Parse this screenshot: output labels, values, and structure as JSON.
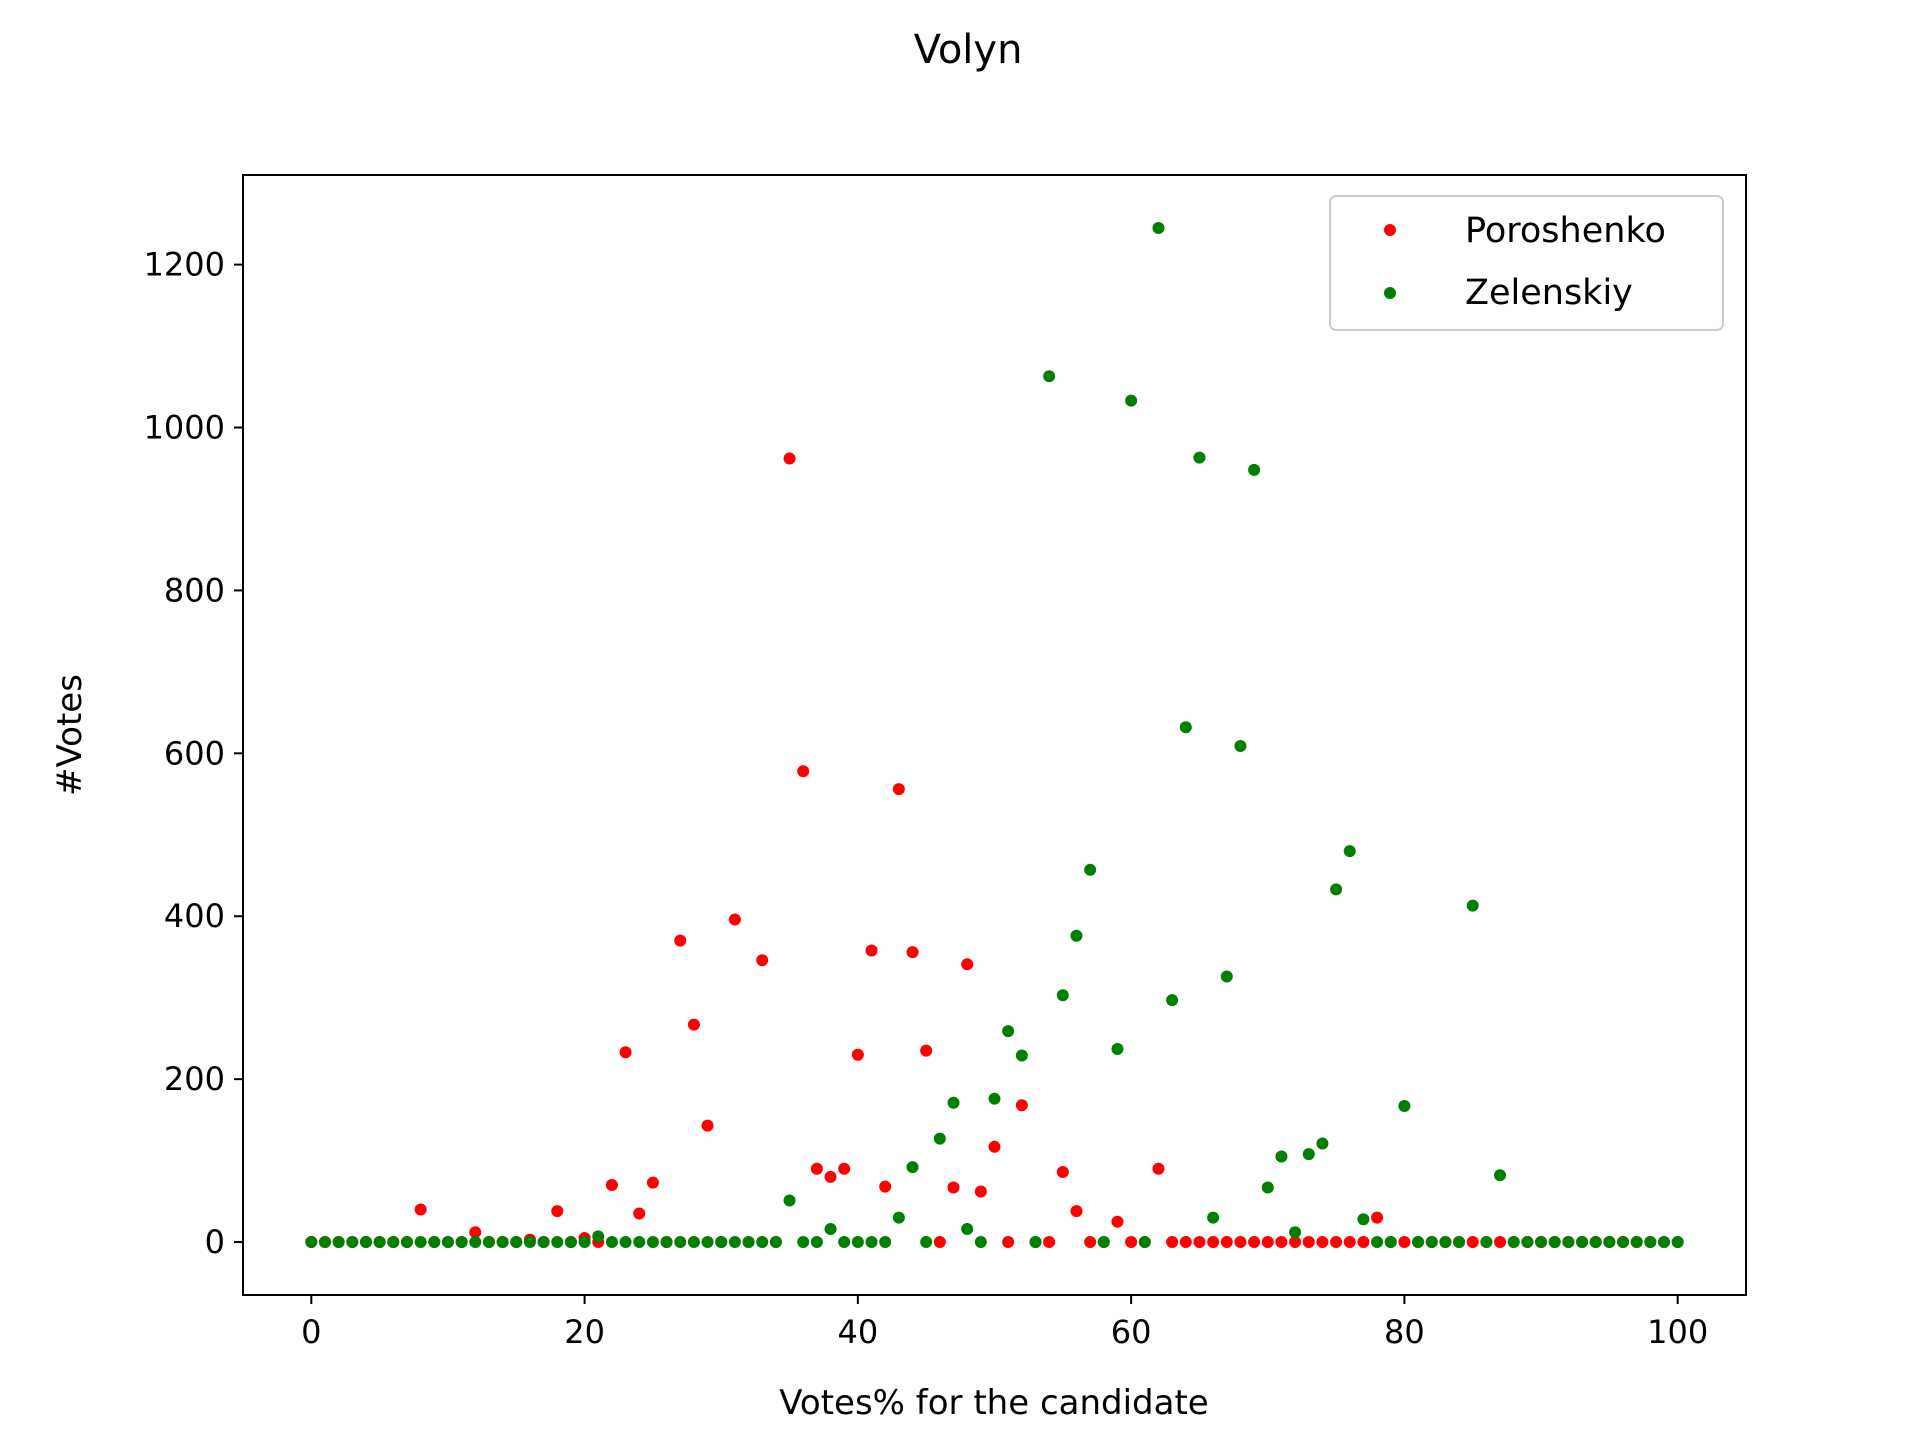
{
  "chart_data": {
    "type": "scatter",
    "title": "Volyn",
    "xlabel": "Votes% for the candidate",
    "ylabel": "#Votes",
    "xlim": [
      -5,
      105
    ],
    "ylim": [
      -65,
      1310
    ],
    "xticks": [
      0,
      20,
      40,
      60,
      80,
      100
    ],
    "yticks": [
      0,
      200,
      400,
      600,
      800,
      1000,
      1200
    ],
    "grid": false,
    "legend_position": "top-right",
    "series": [
      {
        "name": "Poroshenko",
        "color": "#ff0000",
        "points": [
          [
            0,
            0
          ],
          [
            1,
            0
          ],
          [
            2,
            0
          ],
          [
            3,
            0
          ],
          [
            4,
            0
          ],
          [
            5,
            0
          ],
          [
            6,
            0
          ],
          [
            7,
            0
          ],
          [
            8,
            40
          ],
          [
            9,
            0
          ],
          [
            10,
            0
          ],
          [
            11,
            0
          ],
          [
            12,
            12
          ],
          [
            13,
            0
          ],
          [
            14,
            0
          ],
          [
            15,
            0
          ],
          [
            16,
            3
          ],
          [
            17,
            0
          ],
          [
            18,
            38
          ],
          [
            19,
            0
          ],
          [
            20,
            5
          ],
          [
            21,
            0
          ],
          [
            22,
            70
          ],
          [
            23,
            233
          ],
          [
            24,
            35
          ],
          [
            25,
            73
          ],
          [
            26,
            0
          ],
          [
            27,
            370
          ],
          [
            28,
            267
          ],
          [
            29,
            143
          ],
          [
            30,
            0
          ],
          [
            31,
            396
          ],
          [
            32,
            0
          ],
          [
            33,
            346
          ],
          [
            34,
            0
          ],
          [
            35,
            962
          ],
          [
            36,
            578
          ],
          [
            37,
            90
          ],
          [
            38,
            80
          ],
          [
            39,
            90
          ],
          [
            40,
            230
          ],
          [
            41,
            358
          ],
          [
            42,
            68
          ],
          [
            43,
            556
          ],
          [
            44,
            356
          ],
          [
            45,
            235
          ],
          [
            46,
            0
          ],
          [
            47,
            67
          ],
          [
            48,
            341
          ],
          [
            49,
            62
          ],
          [
            50,
            117
          ],
          [
            51,
            0
          ],
          [
            52,
            168
          ],
          [
            53,
            0
          ],
          [
            54,
            0
          ],
          [
            55,
            86
          ],
          [
            56,
            38
          ],
          [
            57,
            0
          ],
          [
            58,
            0
          ],
          [
            59,
            25
          ],
          [
            60,
            0
          ],
          [
            61,
            0
          ],
          [
            62,
            90
          ],
          [
            63,
            0
          ],
          [
            64,
            0
          ],
          [
            65,
            0
          ],
          [
            66,
            0
          ],
          [
            67,
            0
          ],
          [
            68,
            0
          ],
          [
            69,
            0
          ],
          [
            70,
            0
          ],
          [
            71,
            0
          ],
          [
            72,
            0
          ],
          [
            73,
            0
          ],
          [
            74,
            0
          ],
          [
            75,
            0
          ],
          [
            76,
            0
          ],
          [
            77,
            0
          ],
          [
            78,
            30
          ],
          [
            79,
            0
          ],
          [
            80,
            0
          ],
          [
            81,
            0
          ],
          [
            82,
            0
          ],
          [
            83,
            0
          ],
          [
            84,
            0
          ],
          [
            85,
            0
          ],
          [
            86,
            0
          ],
          [
            87,
            0
          ],
          [
            88,
            0
          ],
          [
            89,
            0
          ],
          [
            90,
            0
          ],
          [
            91,
            0
          ],
          [
            92,
            0
          ],
          [
            93,
            0
          ],
          [
            94,
            0
          ],
          [
            95,
            0
          ],
          [
            96,
            0
          ],
          [
            97,
            0
          ],
          [
            98,
            0
          ],
          [
            99,
            0
          ],
          [
            100,
            0
          ]
        ]
      },
      {
        "name": "Zelenskiy",
        "color": "#008000",
        "points": [
          [
            0,
            0
          ],
          [
            1,
            0
          ],
          [
            2,
            0
          ],
          [
            3,
            0
          ],
          [
            4,
            0
          ],
          [
            5,
            0
          ],
          [
            6,
            0
          ],
          [
            7,
            0
          ],
          [
            8,
            0
          ],
          [
            9,
            0
          ],
          [
            10,
            0
          ],
          [
            11,
            0
          ],
          [
            12,
            0
          ],
          [
            13,
            0
          ],
          [
            14,
            0
          ],
          [
            15,
            0
          ],
          [
            16,
            0
          ],
          [
            17,
            0
          ],
          [
            18,
            0
          ],
          [
            19,
            0
          ],
          [
            20,
            0
          ],
          [
            21,
            7
          ],
          [
            22,
            0
          ],
          [
            23,
            0
          ],
          [
            24,
            0
          ],
          [
            25,
            0
          ],
          [
            26,
            0
          ],
          [
            27,
            0
          ],
          [
            28,
            0
          ],
          [
            29,
            0
          ],
          [
            30,
            0
          ],
          [
            31,
            0
          ],
          [
            32,
            0
          ],
          [
            33,
            0
          ],
          [
            34,
            0
          ],
          [
            35,
            51
          ],
          [
            36,
            0
          ],
          [
            37,
            0
          ],
          [
            38,
            16
          ],
          [
            39,
            0
          ],
          [
            40,
            0
          ],
          [
            41,
            0
          ],
          [
            42,
            0
          ],
          [
            43,
            30
          ],
          [
            44,
            92
          ],
          [
            45,
            0
          ],
          [
            46,
            127
          ],
          [
            47,
            171
          ],
          [
            48,
            16
          ],
          [
            49,
            0
          ],
          [
            50,
            176
          ],
          [
            51,
            259
          ],
          [
            52,
            229
          ],
          [
            53,
            0
          ],
          [
            54,
            1063
          ],
          [
            55,
            303
          ],
          [
            56,
            376
          ],
          [
            57,
            457
          ],
          [
            58,
            0
          ],
          [
            59,
            237
          ],
          [
            60,
            1033
          ],
          [
            61,
            0
          ],
          [
            62,
            1245
          ],
          [
            63,
            297
          ],
          [
            64,
            632
          ],
          [
            65,
            963
          ],
          [
            66,
            30
          ],
          [
            67,
            326
          ],
          [
            68,
            609
          ],
          [
            69,
            948
          ],
          [
            70,
            67
          ],
          [
            71,
            105
          ],
          [
            72,
            12
          ],
          [
            73,
            108
          ],
          [
            74,
            121
          ],
          [
            75,
            433
          ],
          [
            76,
            480
          ],
          [
            77,
            28
          ],
          [
            78,
            0
          ],
          [
            79,
            0
          ],
          [
            80,
            167
          ],
          [
            81,
            0
          ],
          [
            82,
            0
          ],
          [
            83,
            0
          ],
          [
            84,
            0
          ],
          [
            85,
            413
          ],
          [
            86,
            0
          ],
          [
            87,
            82
          ],
          [
            88,
            0
          ],
          [
            89,
            0
          ],
          [
            90,
            0
          ],
          [
            91,
            0
          ],
          [
            92,
            0
          ],
          [
            93,
            0
          ],
          [
            94,
            0
          ],
          [
            95,
            0
          ],
          [
            96,
            0
          ],
          [
            97,
            0
          ],
          [
            98,
            0
          ],
          [
            99,
            0
          ],
          [
            100,
            0
          ]
        ]
      }
    ]
  }
}
